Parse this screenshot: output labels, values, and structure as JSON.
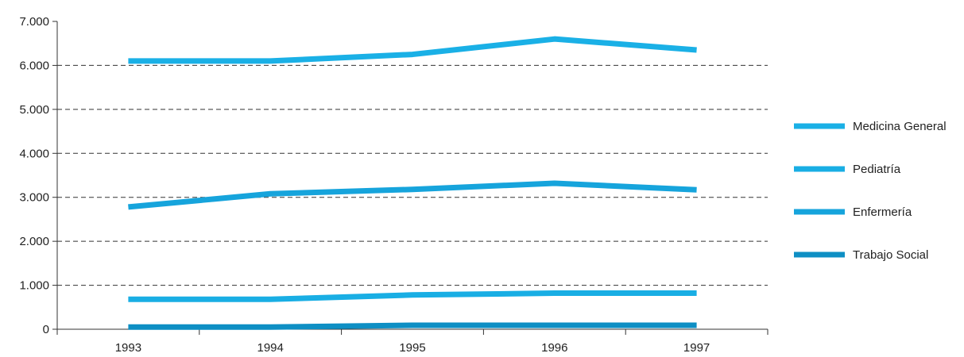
{
  "chart_data": {
    "type": "line",
    "title": "",
    "xlabel": "",
    "ylabel": "",
    "categories": [
      "1993",
      "1994",
      "1995",
      "1996",
      "1997"
    ],
    "y_ticks": [
      "0",
      "1.000",
      "2.000",
      "3.000",
      "4.000",
      "5.000",
      "6.000",
      "7.000"
    ],
    "ylim": [
      0,
      7000
    ],
    "grid": "horizontal dashed",
    "legend_position": "right",
    "series": [
      {
        "name": "Medicina General",
        "color": "#1ab0e6",
        "values": [
          6100,
          6100,
          6250,
          6600,
          6350
        ]
      },
      {
        "name": "Pediatría",
        "color": "#19aee4",
        "values": [
          680,
          680,
          780,
          820,
          820
        ]
      },
      {
        "name": "Enfermería",
        "color": "#16a4dc",
        "values": [
          2780,
          3080,
          3180,
          3320,
          3170
        ]
      },
      {
        "name": "Trabajo Social",
        "color": "#0e8fc4",
        "values": [
          50,
          50,
          90,
          90,
          90
        ]
      }
    ]
  }
}
